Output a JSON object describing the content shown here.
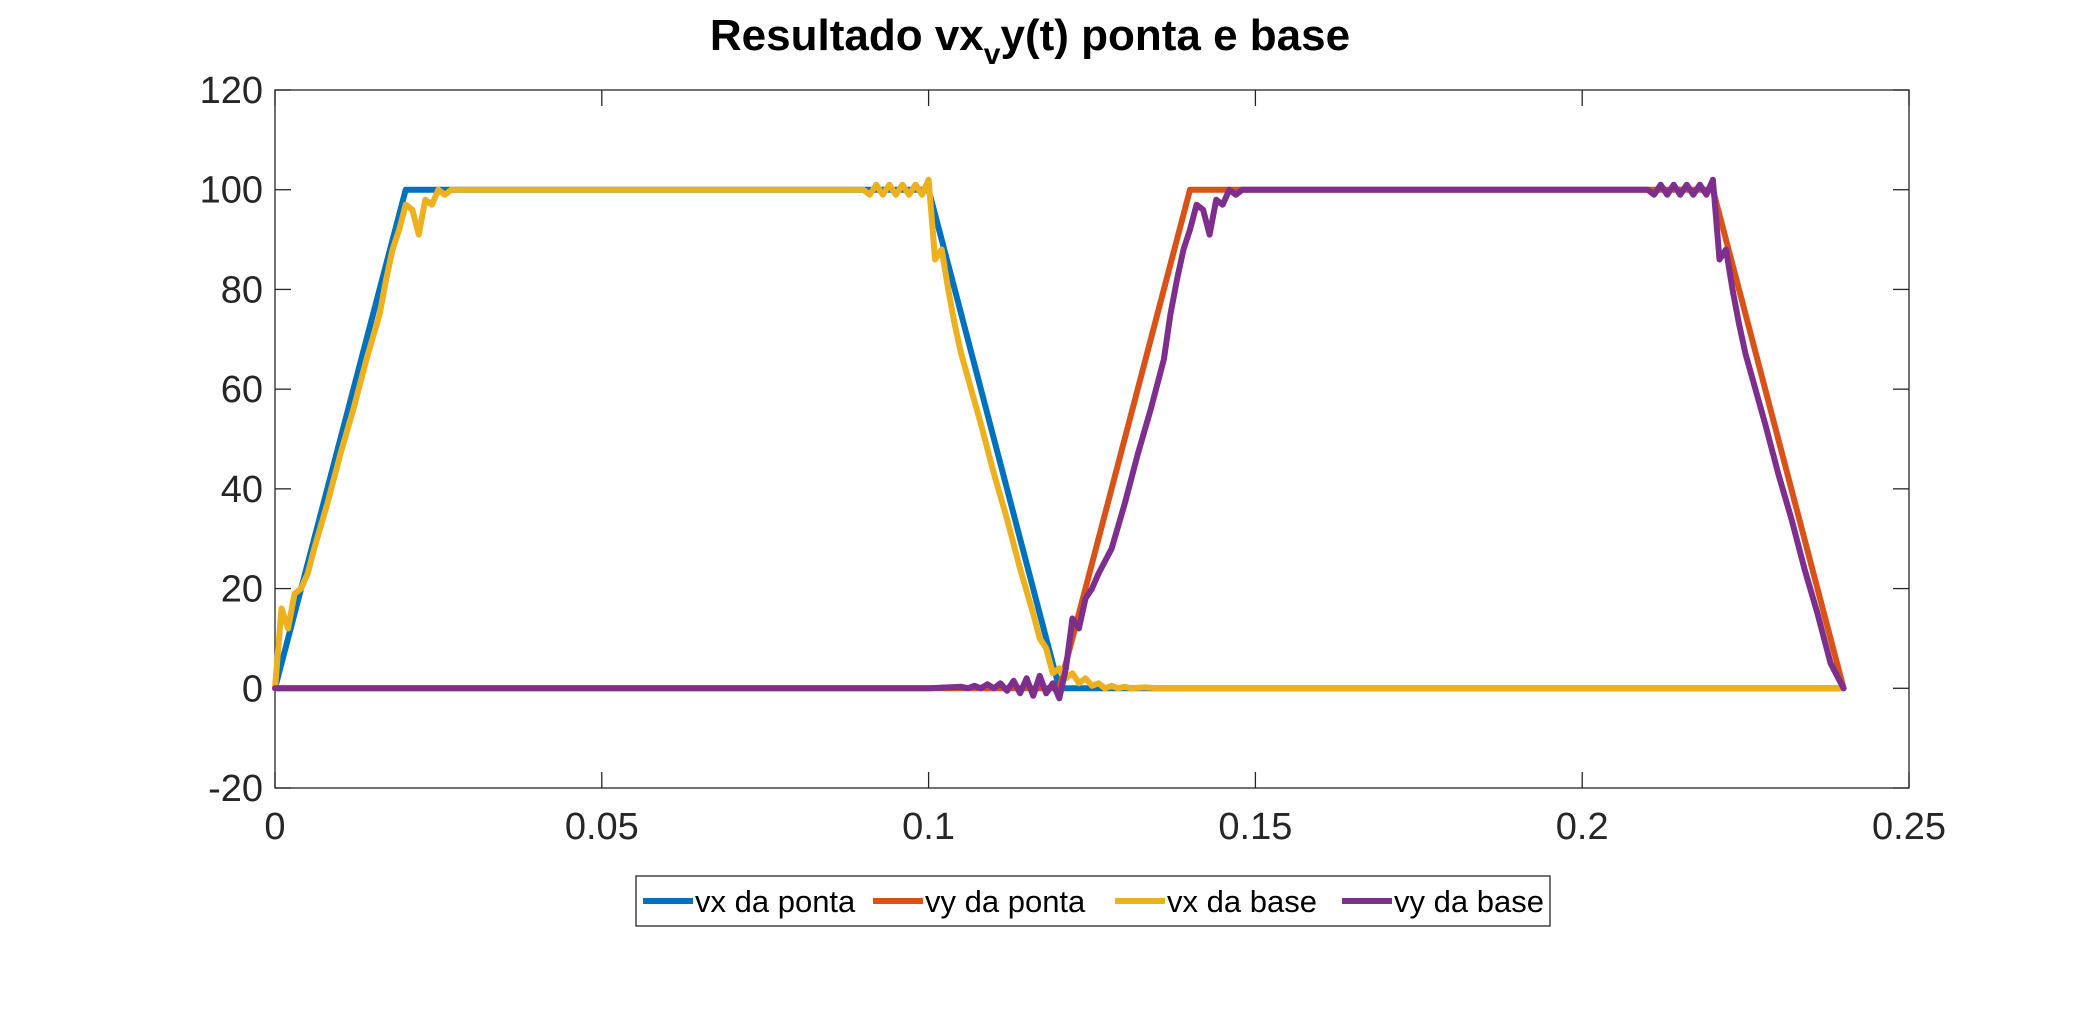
{
  "chart_data": {
    "type": "line",
    "title_parts": [
      "Resultado vx",
      "v",
      "y(t) ponta e base"
    ],
    "xlabel": "",
    "ylabel": "",
    "xlim": [
      0,
      0.25
    ],
    "ylim": [
      -20,
      120
    ],
    "x_ticks": [
      0,
      0.05,
      0.1,
      0.15,
      0.2,
      0.25
    ],
    "x_tick_labels": [
      "0",
      "0.05",
      "0.1",
      "0.15",
      "0.2",
      "0.25"
    ],
    "y_ticks": [
      -20,
      0,
      20,
      40,
      60,
      80,
      100,
      120
    ],
    "y_tick_labels": [
      "-20",
      "0",
      "20",
      "40",
      "60",
      "80",
      "100",
      "120"
    ],
    "grid": false,
    "legend_position": "bottom-center",
    "series": [
      {
        "name": "vx da ponta",
        "color": "#0072BD",
        "x": [
          0,
          0.02,
          0.1,
          0.12,
          0.24
        ],
        "y": [
          0,
          100,
          100,
          0,
          0
        ]
      },
      {
        "name": "vy da ponta",
        "color": "#D95319",
        "x": [
          0,
          0.12,
          0.14,
          0.22,
          0.24
        ],
        "y": [
          0,
          0,
          100,
          100,
          0
        ]
      },
      {
        "name": "vx da base",
        "color": "#EDB120",
        "x": [
          0,
          0.001,
          0.002,
          0.003,
          0.004,
          0.005,
          0.006,
          0.008,
          0.01,
          0.012,
          0.014,
          0.016,
          0.017,
          0.018,
          0.019,
          0.02,
          0.021,
          0.022,
          0.023,
          0.024,
          0.025,
          0.026,
          0.027,
          0.028,
          0.029,
          0.03,
          0.031,
          0.033,
          0.035,
          0.04,
          0.09,
          0.091,
          0.092,
          0.093,
          0.094,
          0.095,
          0.096,
          0.097,
          0.098,
          0.099,
          0.1,
          0.101,
          0.102,
          0.103,
          0.104,
          0.105,
          0.108,
          0.11,
          0.112,
          0.114,
          0.116,
          0.117,
          0.118,
          0.119,
          0.12,
          0.121,
          0.122,
          0.123,
          0.124,
          0.125,
          0.126,
          0.127,
          0.128,
          0.129,
          0.13,
          0.131,
          0.133,
          0.135,
          0.14,
          0.24
        ],
        "y": [
          0,
          16,
          12,
          19,
          20,
          23,
          28,
          37,
          47,
          56,
          66,
          75,
          82,
          88,
          92,
          97,
          96,
          91,
          98,
          97,
          100,
          99,
          100,
          100,
          100,
          100,
          100,
          100,
          100,
          100,
          100,
          99,
          101,
          99,
          101,
          99,
          101,
          99,
          101,
          99,
          102,
          86,
          88,
          80,
          73,
          67,
          53,
          43,
          34,
          24,
          15,
          10,
          8,
          3,
          4,
          2,
          3,
          1,
          2,
          0.5,
          1,
          0,
          0.5,
          0,
          0.3,
          0,
          0.2,
          0,
          0,
          0
        ]
      },
      {
        "name": "vy da base",
        "color": "#7E2F8E",
        "x": [
          0,
          0.09,
          0.1,
          0.105,
          0.106,
          0.107,
          0.108,
          0.109,
          0.11,
          0.111,
          0.112,
          0.113,
          0.114,
          0.115,
          0.116,
          0.117,
          0.118,
          0.119,
          0.12,
          0.121,
          0.122,
          0.123,
          0.124,
          0.125,
          0.126,
          0.128,
          0.13,
          0.132,
          0.134,
          0.136,
          0.137,
          0.138,
          0.139,
          0.14,
          0.141,
          0.142,
          0.143,
          0.144,
          0.145,
          0.146,
          0.147,
          0.148,
          0.149,
          0.15,
          0.151,
          0.153,
          0.155,
          0.16,
          0.21,
          0.211,
          0.212,
          0.213,
          0.214,
          0.215,
          0.216,
          0.217,
          0.218,
          0.219,
          0.22,
          0.221,
          0.222,
          0.223,
          0.224,
          0.225,
          0.228,
          0.23,
          0.232,
          0.234,
          0.236,
          0.238,
          0.24
        ],
        "y": [
          0,
          0,
          0,
          0.3,
          0,
          0.5,
          0,
          0.8,
          0,
          1,
          -0.5,
          1.5,
          -1,
          2,
          -1.5,
          2.5,
          -1,
          1,
          -2,
          4,
          14,
          12,
          18,
          20,
          23,
          28,
          37,
          47,
          56,
          66,
          75,
          82,
          88,
          92,
          97,
          96,
          91,
          98,
          97,
          100,
          99,
          100,
          100,
          100,
          100,
          100,
          100,
          100,
          100,
          99,
          101,
          99,
          101,
          99,
          101,
          99,
          101,
          99,
          102,
          86,
          88,
          80,
          73,
          67,
          53,
          43,
          34,
          24,
          15,
          5,
          0
        ]
      }
    ]
  }
}
